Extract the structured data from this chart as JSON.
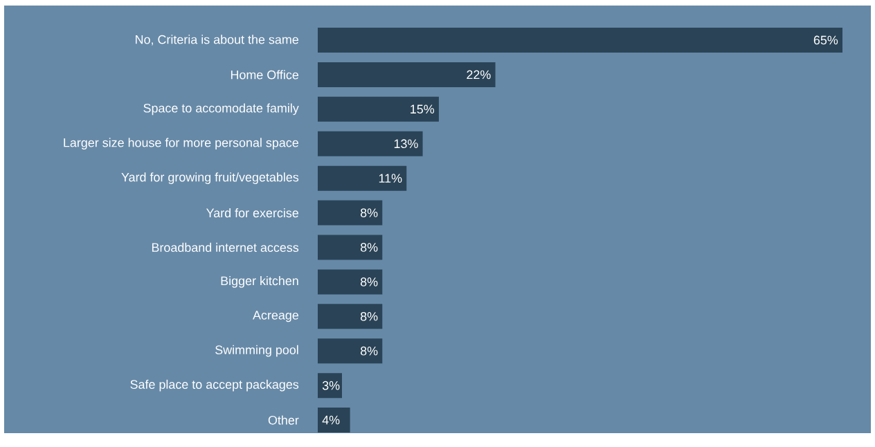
{
  "chart_data": {
    "type": "bar",
    "orientation": "horizontal",
    "color": "#2a4356",
    "categories": [
      "No, Criteria is about the same",
      "Home Office",
      "Space to accomodate family",
      "Larger size house for more personal space",
      "Yard for growing fruit/vegetables",
      "Yard for exercise",
      "Broadband internet access",
      "Bigger kitchen",
      "Acreage",
      "Swimming pool",
      "Safe place to accept packages",
      "Other"
    ],
    "values": [
      65,
      22,
      15,
      13,
      11,
      8,
      8,
      8,
      8,
      8,
      3,
      4
    ],
    "value_labels": [
      "65%",
      "22%",
      "15%",
      "13%",
      "11%",
      "8%",
      "8%",
      "8%",
      "8%",
      "8%",
      "3%",
      "4%"
    ]
  }
}
